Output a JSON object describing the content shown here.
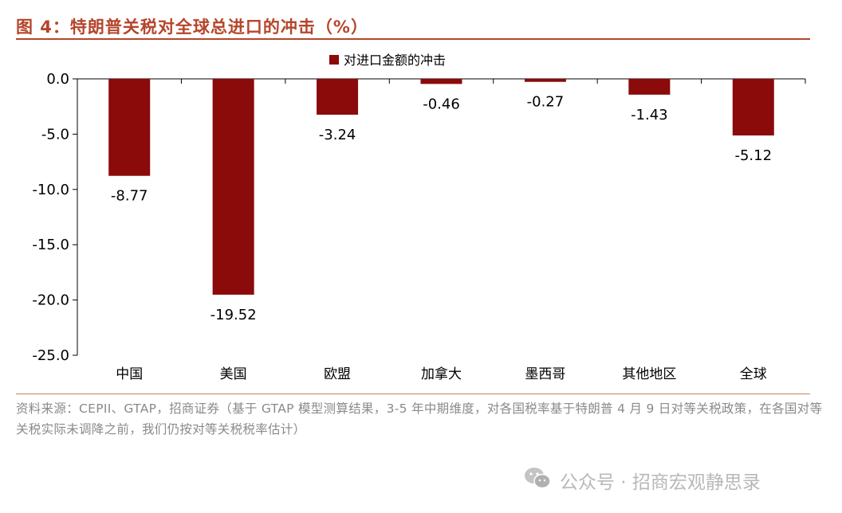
{
  "figure": {
    "title": "图 4：特朗普关税对全球总进口的冲击（%）"
  },
  "chart_data": {
    "type": "bar",
    "categories": [
      "中国",
      "美国",
      "欧盟",
      "加拿大",
      "墨西哥",
      "其他地区",
      "全球"
    ],
    "series": [
      {
        "name": "对进口金额的冲击",
        "values": [
          -8.77,
          -19.52,
          -3.24,
          -0.46,
          -0.27,
          -1.43,
          -5.12
        ]
      }
    ],
    "value_labels": [
      "-8.77",
      "-19.52",
      "-3.24",
      "-0.46",
      "-0.27",
      "-1.43",
      "-5.12"
    ],
    "ylim": [
      -25,
      0
    ],
    "yticks": [
      0,
      -5,
      -10,
      -15,
      -20,
      -25
    ],
    "ytick_labels": [
      "0.0",
      "-5.0",
      "-10.0",
      "-15.0",
      "-20.0",
      "-25.0"
    ],
    "xlabel": "",
    "ylabel": "",
    "grid": false,
    "legend_position": "top-center",
    "bar_color": "#8b0a0a"
  },
  "source_note": "资料来源：CEPII、GTAP，招商证券（基于 GTAP 模型测算结果，3-5 年中期维度，对各国税率基于特朗普 4 月 9 日对等关税政策，在各国对等关税实际未调降之前，我们仍按对等关税税率估计）",
  "watermark": {
    "icon": "wechat-icon",
    "text": "公众号 · 招商宏观静思录"
  }
}
